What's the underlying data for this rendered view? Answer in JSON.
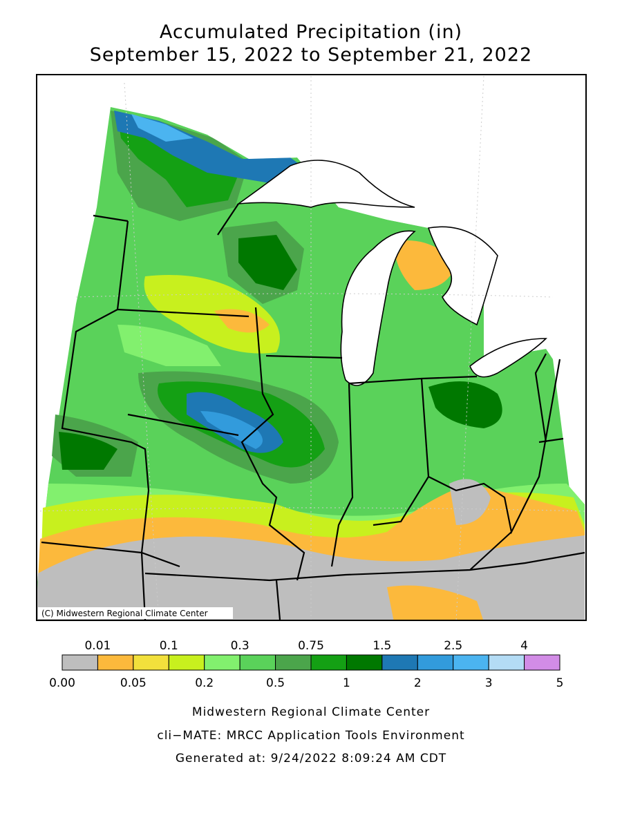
{
  "header": {
    "title": "Accumulated Precipitation (in)",
    "subtitle": "September 15, 2022 to September 21, 2022"
  },
  "map": {
    "credit": "(C) Midwestern Regional Climate Center"
  },
  "legend": {
    "colors": [
      "#bebebe",
      "#fcb93c",
      "#f2e03c",
      "#c8f01e",
      "#82f06e",
      "#5ad25a",
      "#4ba54b",
      "#14a014",
      "#007800",
      "#1e78b4",
      "#329bdc",
      "#4bb4f0",
      "#b4dcf5",
      "#d28ce6"
    ],
    "top_labels": [
      "0.01",
      "0.1",
      "0.3",
      "0.75",
      "1.5",
      "2.5",
      "4"
    ],
    "bottom_labels": [
      "0.00",
      "0.05",
      "0.2",
      "0.5",
      "1",
      "2",
      "3",
      "5"
    ]
  },
  "footer": {
    "lines": [
      "Midwestern Regional Climate Center",
      "cli−MATE: MRCC Application Tools Environment",
      "Generated at: 9/24/2022 8:09:24 AM CDT"
    ]
  }
}
